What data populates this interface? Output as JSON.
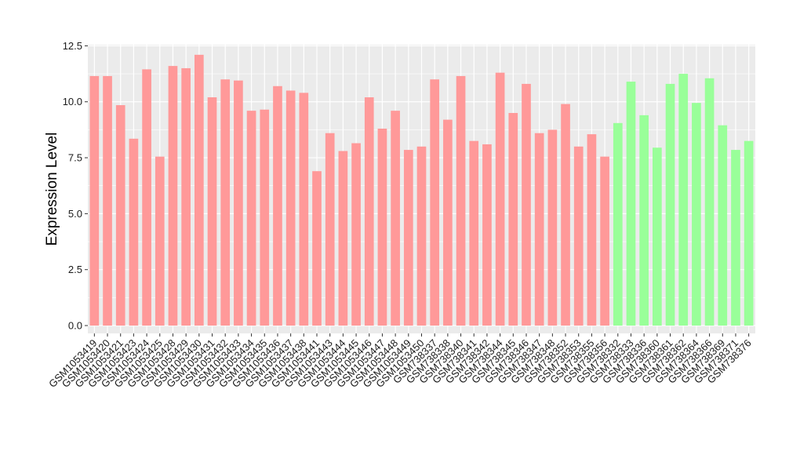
{
  "chart_data": {
    "type": "bar",
    "ylabel": "Expression Level",
    "xlabel": "",
    "ylim": [
      -0.35,
      12.55
    ],
    "yticks": [
      "0.0",
      "2.5",
      "5.0",
      "7.5",
      "10.0",
      "12.5"
    ],
    "ytick_values": [
      0,
      2.5,
      5,
      7.5,
      10,
      12.5
    ],
    "grid": true,
    "panel_background": "#ebebeb",
    "group_colors": {
      "A": "#ff9999",
      "B": "#99ff99"
    },
    "categories": [
      "GSM1053419",
      "GSM1053420",
      "GSM1053421",
      "GSM1053423",
      "GSM1053424",
      "GSM1053425",
      "GSM1053428",
      "GSM1053429",
      "GSM1053430",
      "GSM1053431",
      "GSM1053432",
      "GSM1053433",
      "GSM1053434",
      "GSM1053435",
      "GSM1053436",
      "GSM1053437",
      "GSM1053438",
      "GSM1053441",
      "GSM1053443",
      "GSM1053444",
      "GSM1053445",
      "GSM1053446",
      "GSM1053447",
      "GSM1053448",
      "GSM1053449",
      "GSM1053450",
      "GSM738337",
      "GSM738338",
      "GSM738340",
      "GSM738341",
      "GSM738342",
      "GSM738344",
      "GSM738345",
      "GSM738346",
      "GSM738347",
      "GSM738348",
      "GSM738352",
      "GSM738353",
      "GSM738355",
      "GSM738356",
      "GSM738332",
      "GSM738333",
      "GSM738336",
      "GSM738360",
      "GSM738361",
      "GSM738362",
      "GSM738364",
      "GSM738366",
      "GSM738369",
      "GSM738371",
      "GSM738376"
    ],
    "values": [
      11.15,
      11.15,
      9.85,
      8.35,
      11.45,
      7.55,
      11.6,
      11.5,
      12.1,
      10.2,
      11.0,
      10.95,
      9.6,
      9.65,
      10.7,
      10.5,
      10.4,
      6.9,
      8.6,
      7.8,
      8.15,
      10.2,
      8.8,
      9.6,
      7.85,
      8.0,
      11.0,
      9.2,
      11.15,
      8.25,
      8.1,
      11.3,
      9.5,
      10.8,
      8.6,
      8.75,
      9.9,
      8.0,
      8.55,
      7.55,
      9.05,
      10.9,
      9.4,
      7.95,
      10.8,
      11.25,
      9.95,
      11.05,
      8.95,
      7.85,
      8.25
    ],
    "groups": [
      "A",
      "A",
      "A",
      "A",
      "A",
      "A",
      "A",
      "A",
      "A",
      "A",
      "A",
      "A",
      "A",
      "A",
      "A",
      "A",
      "A",
      "A",
      "A",
      "A",
      "A",
      "A",
      "A",
      "A",
      "A",
      "A",
      "A",
      "A",
      "A",
      "A",
      "A",
      "A",
      "A",
      "A",
      "A",
      "A",
      "A",
      "A",
      "A",
      "A",
      "B",
      "B",
      "B",
      "B",
      "B",
      "B",
      "B",
      "B",
      "B",
      "B",
      "B"
    ]
  }
}
